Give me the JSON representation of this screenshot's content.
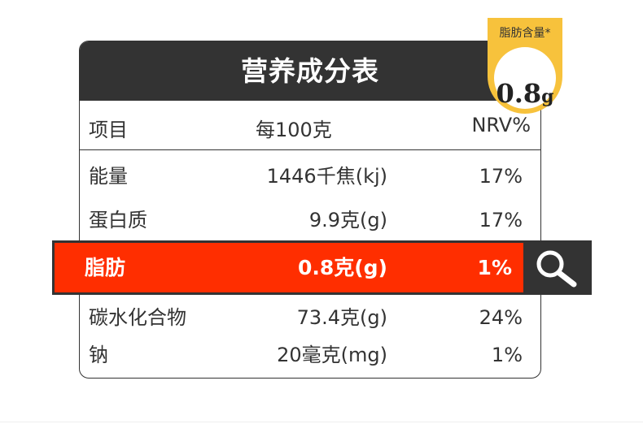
{
  "title": "营养成分表",
  "columns": [
    "项目",
    "每100克",
    "NRV%"
  ],
  "rows": [
    {
      "item": "能量",
      "per100g": "1446千焦(kj)",
      "nrv": "17%"
    },
    {
      "item": "蛋白质",
      "per100g": "9.9克(g)",
      "nrv": "17%"
    },
    {
      "item": "脂肪",
      "per100g": "0.8克(g)",
      "nrv": "1%"
    },
    {
      "item": "碳水化合物",
      "per100g": "73.4克(g)",
      "nrv": "24%"
    },
    {
      "item": "钠",
      "per100g": "20毫克(mg)",
      "nrv": "1%"
    }
  ],
  "badge": {
    "label": "脂肪含量*",
    "value": "0.8",
    "unit": "g"
  },
  "colors": {
    "header": "#333333",
    "highlight": "#ff2e00",
    "badge": "#f7c23c"
  },
  "icons": {
    "highlight": "magnifier-icon"
  }
}
